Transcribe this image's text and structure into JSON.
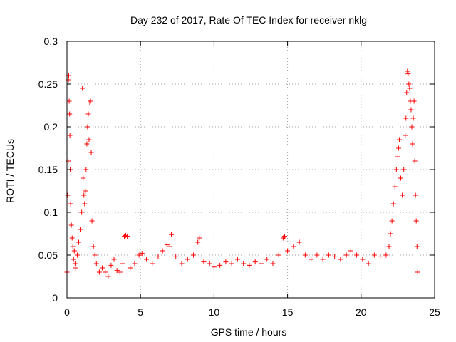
{
  "chart_data": {
    "type": "scatter",
    "title": "Day 232 of 2017, Rate Of TEC Index for receiver nklg",
    "xlabel": "GPS time / hours",
    "ylabel": "ROTI / TECUs",
    "xlim": [
      0,
      25
    ],
    "ylim": [
      0,
      0.3
    ],
    "xticks": [
      0,
      5,
      10,
      15,
      20,
      25
    ],
    "xtick_labels": [
      "0",
      "5",
      "10",
      "15",
      "20",
      "25"
    ],
    "yticks": [
      0,
      0.05,
      0.1,
      0.15,
      0.2,
      0.25,
      0.3
    ],
    "ytick_labels": [
      "0",
      "0.05",
      "0.1",
      "0.15",
      "0.2",
      "0.25",
      "0.3"
    ],
    "grid": true,
    "marker": "+",
    "color": "#ff0000",
    "series": [
      {
        "points": [
          [
            0.0,
            0.03
          ],
          [
            0.05,
            0.12
          ],
          [
            0.08,
            0.16
          ],
          [
            0.1,
            0.255
          ],
          [
            0.12,
            0.26
          ],
          [
            0.15,
            0.23
          ],
          [
            0.18,
            0.215
          ],
          [
            0.2,
            0.19
          ],
          [
            0.22,
            0.15
          ],
          [
            0.25,
            0.11
          ],
          [
            0.3,
            0.085
          ],
          [
            0.35,
            0.07
          ],
          [
            0.4,
            0.06
          ],
          [
            0.45,
            0.045
          ],
          [
            0.5,
            0.055
          ],
          [
            0.55,
            0.04
          ],
          [
            0.6,
            0.035
          ],
          [
            0.7,
            0.05
          ],
          [
            0.8,
            0.065
          ],
          [
            0.9,
            0.08
          ],
          [
            1.0,
            0.1
          ],
          [
            1.05,
            0.245
          ],
          [
            1.1,
            0.14
          ],
          [
            1.15,
            0.12
          ],
          [
            1.2,
            0.11
          ],
          [
            1.25,
            0.125
          ],
          [
            1.3,
            0.15
          ],
          [
            1.35,
            0.18
          ],
          [
            1.4,
            0.2
          ],
          [
            1.45,
            0.215
          ],
          [
            1.5,
            0.185
          ],
          [
            1.55,
            0.228
          ],
          [
            1.6,
            0.23
          ],
          [
            1.65,
            0.17
          ],
          [
            1.7,
            0.09
          ],
          [
            1.8,
            0.06
          ],
          [
            1.9,
            0.05
          ],
          [
            2.0,
            0.04
          ],
          [
            2.2,
            0.03
          ],
          [
            2.4,
            0.035
          ],
          [
            2.6,
            0.03
          ],
          [
            2.8,
            0.025
          ],
          [
            3.0,
            0.038
          ],
          [
            3.2,
            0.045
          ],
          [
            3.4,
            0.032
          ],
          [
            3.6,
            0.03
          ],
          [
            3.8,
            0.04
          ],
          [
            3.9,
            0.072
          ],
          [
            4.0,
            0.073
          ],
          [
            4.1,
            0.072
          ],
          [
            4.3,
            0.035
          ],
          [
            4.6,
            0.04
          ],
          [
            4.9,
            0.05
          ],
          [
            5.1,
            0.052
          ],
          [
            5.4,
            0.045
          ],
          [
            5.8,
            0.04
          ],
          [
            6.2,
            0.048
          ],
          [
            6.5,
            0.055
          ],
          [
            6.8,
            0.062
          ],
          [
            7.0,
            0.06
          ],
          [
            7.1,
            0.074
          ],
          [
            7.4,
            0.048
          ],
          [
            7.8,
            0.04
          ],
          [
            8.2,
            0.045
          ],
          [
            8.6,
            0.05
          ],
          [
            8.9,
            0.065
          ],
          [
            9.0,
            0.07
          ],
          [
            9.3,
            0.042
          ],
          [
            9.7,
            0.04
          ],
          [
            10.0,
            0.036
          ],
          [
            10.4,
            0.038
          ],
          [
            10.8,
            0.042
          ],
          [
            11.2,
            0.04
          ],
          [
            11.6,
            0.045
          ],
          [
            12.0,
            0.04
          ],
          [
            12.4,
            0.038
          ],
          [
            12.8,
            0.042
          ],
          [
            13.2,
            0.04
          ],
          [
            13.6,
            0.045
          ],
          [
            14.0,
            0.04
          ],
          [
            14.4,
            0.05
          ],
          [
            14.7,
            0.07
          ],
          [
            14.8,
            0.072
          ],
          [
            15.0,
            0.055
          ],
          [
            15.4,
            0.06
          ],
          [
            15.8,
            0.065
          ],
          [
            16.2,
            0.05
          ],
          [
            16.6,
            0.045
          ],
          [
            17.0,
            0.05
          ],
          [
            17.4,
            0.045
          ],
          [
            17.8,
            0.05
          ],
          [
            18.2,
            0.048
          ],
          [
            18.6,
            0.045
          ],
          [
            19.0,
            0.05
          ],
          [
            19.3,
            0.055
          ],
          [
            19.7,
            0.05
          ],
          [
            20.1,
            0.045
          ],
          [
            20.5,
            0.04
          ],
          [
            20.9,
            0.05
          ],
          [
            21.3,
            0.048
          ],
          [
            21.7,
            0.05
          ],
          [
            21.9,
            0.06
          ],
          [
            22.0,
            0.075
          ],
          [
            22.1,
            0.09
          ],
          [
            22.2,
            0.11
          ],
          [
            22.3,
            0.13
          ],
          [
            22.4,
            0.15
          ],
          [
            22.5,
            0.165
          ],
          [
            22.55,
            0.175
          ],
          [
            22.6,
            0.185
          ],
          [
            22.7,
            0.14
          ],
          [
            22.8,
            0.12
          ],
          [
            22.9,
            0.15
          ],
          [
            23.0,
            0.19
          ],
          [
            23.05,
            0.21
          ],
          [
            23.1,
            0.24
          ],
          [
            23.15,
            0.265
          ],
          [
            23.2,
            0.262
          ],
          [
            23.25,
            0.25
          ],
          [
            23.3,
            0.245
          ],
          [
            23.35,
            0.23
          ],
          [
            23.4,
            0.22
          ],
          [
            23.45,
            0.2
          ],
          [
            23.5,
            0.18
          ],
          [
            23.55,
            0.21
          ],
          [
            23.6,
            0.23
          ],
          [
            23.65,
            0.16
          ],
          [
            23.7,
            0.12
          ],
          [
            23.75,
            0.09
          ],
          [
            23.8,
            0.06
          ],
          [
            23.85,
            0.03
          ]
        ]
      }
    ]
  }
}
